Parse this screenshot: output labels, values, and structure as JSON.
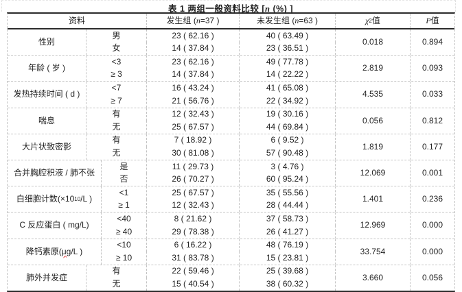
{
  "title": {
    "pre": "表 1  两组一般资料比较 [",
    "n": "n",
    "post": " (%) ]"
  },
  "header": {
    "data_label": "资料",
    "group1_pre": "发生组 ( ",
    "group1_n": "n",
    "group1_post": "=37 )",
    "group2_pre": "未发生组 ( ",
    "group2_n": "n",
    "group2_post": "=63 )",
    "chi2_symbol": "χ",
    "chi2_sup": "2",
    "chi2_suffix": "值",
    "p_symbol": "P",
    "p_suffix": "值"
  },
  "table": {
    "groups": [
      {
        "label": "性别",
        "rows": [
          {
            "sub": "男",
            "g1": "23 ( 62.16 )",
            "g2": "40 ( 63.49 )"
          },
          {
            "sub": "女",
            "g1": "14 ( 37.84 )",
            "g2": "23 ( 36.51 )"
          }
        ],
        "chi2": "0.018",
        "p": "0.894"
      },
      {
        "label": "年龄 ( 岁 )",
        "rows": [
          {
            "sub": "<3",
            "g1": "23 ( 62.16 )",
            "g2": "49 ( 77.78 )"
          },
          {
            "sub": "≥ 3",
            "g1": "14 ( 37.84 )",
            "g2": "14 ( 22.22 )"
          }
        ],
        "chi2": "2.819",
        "p": "0.093"
      },
      {
        "label": "发热持续时间 ( d )",
        "rows": [
          {
            "sub": "<7",
            "g1": "16 ( 43.24 )",
            "g2": "41 ( 65.08 )"
          },
          {
            "sub": "≥ 7",
            "g1": "21 ( 56.76 )",
            "g2": "22 ( 34.92 )"
          }
        ],
        "chi2": "4.535",
        "p": "0.033"
      },
      {
        "label": "喘息",
        "rows": [
          {
            "sub": "有",
            "g1": "12 ( 32.43 )",
            "g2": "19 ( 30.16 )"
          },
          {
            "sub": "无",
            "g1": "25 ( 67.57 )",
            "g2": "44 ( 69.84 )"
          }
        ],
        "chi2": "0.056",
        "p": "0.812"
      },
      {
        "label": "大片状致密影",
        "rows": [
          {
            "sub": "有",
            "g1": "7 ( 18.92 )",
            "g2": "6 ( 9.52 )"
          },
          {
            "sub": "无",
            "g1": "30 ( 81.08 )",
            "g2": "57 ( 90.48 )"
          }
        ],
        "chi2": "1.819",
        "p": "0.177"
      },
      {
        "label": "合并胸腔积液 / 肺不张",
        "rows": [
          {
            "sub": "是",
            "g1": "11 ( 29.73 )",
            "g2": "3 ( 4.76 )"
          },
          {
            "sub": "否",
            "g1": "26 ( 70.27 )",
            "g2": "60 ( 95.24 )"
          }
        ],
        "chi2": "12.069",
        "p": "0.001"
      },
      {
        "label_pre": "白细胞计数(×10",
        "label_sup": "10",
        "label_post": "/L )",
        "rows": [
          {
            "sub": "<1",
            "g1": "25 ( 67.57 )",
            "g2": "35 ( 55.56 )"
          },
          {
            "sub": "≥ 1",
            "g1": "12 ( 32.43 )",
            "g2": "28 ( 44.44 )"
          }
        ],
        "chi2": "1.401",
        "p": "0.236"
      },
      {
        "label": "C 反应蛋白 ( mg/L)",
        "rows": [
          {
            "sub": "<40",
            "g1": "8 ( 21.62 )",
            "g2": "37 ( 58.73 )"
          },
          {
            "sub": "≥ 40",
            "g1": "29 ( 78.38 )",
            "g2": "26 ( 41.27 )"
          }
        ],
        "chi2": "12.969",
        "p": "0.000"
      },
      {
        "label_pre": "降钙素原(",
        "label_wavy": "μg",
        "label_post": "/L )",
        "rows": [
          {
            "sub": "<10",
            "g1": "6 ( 16.22 )",
            "g2": "48 ( 76.19 )"
          },
          {
            "sub": "≥ 10",
            "g1": "31 ( 83.78 )",
            "g2": "15 ( 23.81 )"
          }
        ],
        "chi2": "33.754",
        "p": "0.000"
      },
      {
        "label": "肺外并发症",
        "rows": [
          {
            "sub": "有",
            "g1": "22 ( 59.46 )",
            "g2": "25 ( 39.68 )"
          },
          {
            "sub": "无",
            "g1": "15 ( 40.54 )",
            "g2": "38 ( 60.32 )"
          }
        ],
        "chi2": "3.660",
        "p": "0.056"
      }
    ]
  }
}
